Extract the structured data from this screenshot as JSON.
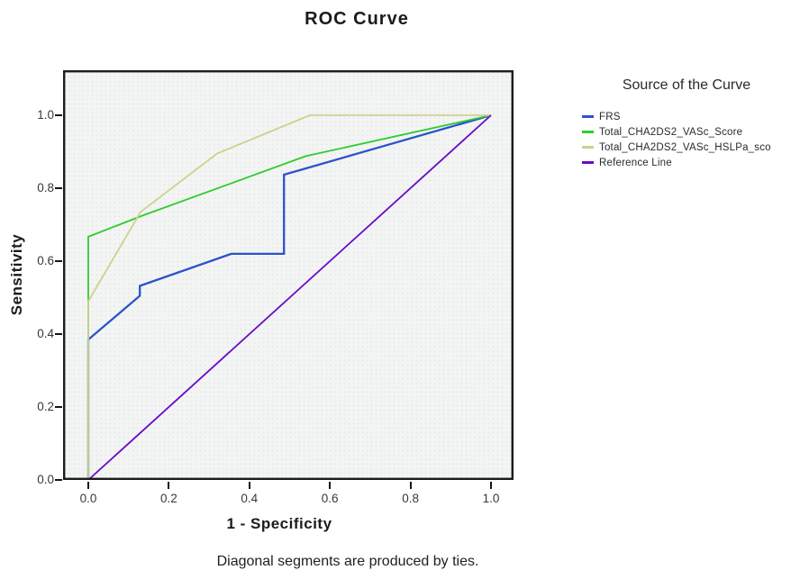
{
  "title": "ROC Curve",
  "footnote": "Diagonal segments are produced by ties.",
  "axes": {
    "x_label": "1 - Specificity",
    "y_label": "Sensitivity",
    "x_ticks": [
      "0.0",
      "0.2",
      "0.4",
      "0.6",
      "0.8",
      "1.0"
    ],
    "y_ticks": [
      "0.0",
      "0.2",
      "0.4",
      "0.6",
      "0.8",
      "1.0"
    ]
  },
  "legend": {
    "title": "Source of the Curve",
    "position": "right"
  },
  "colors": {
    "frs": "#2e52cc",
    "cha2ds2_vasc_score": "#2ecc2e",
    "cha2ds2_vasc_hslpa": "#cfd08c",
    "reference_line": "#6d0ac8",
    "plot_background": "#f3f5f4",
    "plot_border": "#1c1c1c"
  },
  "chart_data": {
    "type": "line",
    "title": "ROC Curve",
    "xlabel": "1 - Specificity",
    "ylabel": "Sensitivity",
    "xlim": [
      0.0,
      1.0
    ],
    "ylim": [
      0.0,
      1.0
    ],
    "x_tick_values": [
      0.0,
      0.2,
      0.4,
      0.6,
      0.8,
      1.0
    ],
    "y_tick_values": [
      0.0,
      0.2,
      0.4,
      0.6,
      0.8,
      1.0
    ],
    "grid": false,
    "legend_position": "right",
    "legend_title": "Source of the Curve",
    "series": [
      {
        "name": "FRS",
        "color": "#2e52cc",
        "stroke_width": 2.3,
        "points": [
          [
            0,
            0
          ],
          [
            0,
            0.385
          ],
          [
            0.128,
            0.505
          ],
          [
            0.128,
            0.532
          ],
          [
            0.355,
            0.62
          ],
          [
            0.486,
            0.62
          ],
          [
            0.486,
            0.837
          ],
          [
            1,
            1
          ]
        ]
      },
      {
        "name": "Total_CHA2DS2_VASc_Score",
        "color": "#2ecc2e",
        "stroke_width": 1.8,
        "points": [
          [
            0,
            0
          ],
          [
            0,
            0.667
          ],
          [
            0.135,
            0.725
          ],
          [
            0.54,
            0.888
          ],
          [
            1,
            1
          ]
        ]
      },
      {
        "name": "Total_CHA2DS2_VASc_HSLPa_sco",
        "color": "#cfd08c",
        "stroke_width": 1.8,
        "points": [
          [
            0,
            0
          ],
          [
            0,
            0.49
          ],
          [
            0.13,
            0.735
          ],
          [
            0.32,
            0.895
          ],
          [
            0.55,
            1
          ],
          [
            1,
            1
          ]
        ]
      },
      {
        "name": "Reference Line",
        "color": "#6d0ac8",
        "stroke_width": 1.8,
        "points": [
          [
            0,
            0
          ],
          [
            1,
            1
          ]
        ]
      }
    ]
  }
}
